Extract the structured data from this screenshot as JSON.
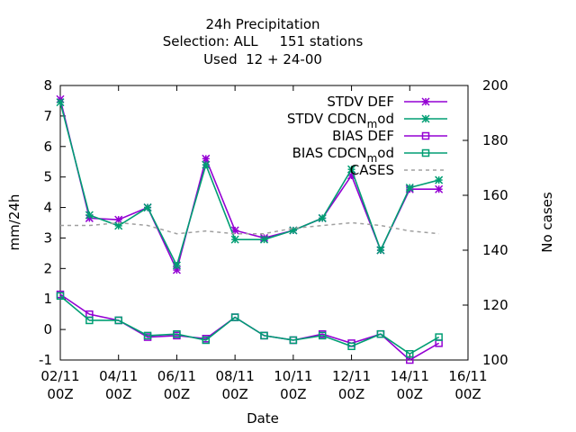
{
  "chart_data": {
    "type": "line",
    "title_lines": [
      "24h Precipitation",
      "Selection: ALL     151 stations",
      "Used  12 + 24-00"
    ],
    "xlabel": "Date",
    "ylabel": "mm/24h",
    "y2label": "No cases",
    "ylim": [
      -1,
      8
    ],
    "y2lim": [
      100,
      200
    ],
    "xlim": [
      0,
      14
    ],
    "yticks": [
      -1,
      0,
      1,
      2,
      3,
      4,
      5,
      6,
      7,
      8
    ],
    "y2ticks": [
      100,
      120,
      140,
      160,
      180,
      200
    ],
    "xticks": [
      {
        "pos": 0,
        "date": "02/11",
        "time": "00Z"
      },
      {
        "pos": 2,
        "date": "04/11",
        "time": "00Z"
      },
      {
        "pos": 4,
        "date": "06/11",
        "time": "00Z"
      },
      {
        "pos": 6,
        "date": "08/11",
        "time": "00Z"
      },
      {
        "pos": 8,
        "date": "10/11",
        "time": "00Z"
      },
      {
        "pos": 10,
        "date": "12/11",
        "time": "00Z"
      },
      {
        "pos": 12,
        "date": "14/11",
        "time": "00Z"
      },
      {
        "pos": 14,
        "date": "16/11",
        "time": "00Z"
      }
    ],
    "legend_position": "top-right",
    "series": [
      {
        "name": "STDV DEF",
        "name_main": "STDV DEF",
        "name_sub": "",
        "name_tail": "",
        "axis": "y1",
        "color": "#9400d3",
        "marker": "star",
        "x": [
          0,
          1,
          2,
          3,
          4,
          5,
          6,
          7,
          8,
          9,
          10,
          11,
          12,
          13
        ],
        "values": [
          7.55,
          3.65,
          3.6,
          4.0,
          1.95,
          5.6,
          3.25,
          3.0,
          3.25,
          3.65,
          5.05,
          2.6,
          4.6,
          4.6
        ]
      },
      {
        "name": "STDV CDCN mod",
        "name_main": "STDV CDCN",
        "name_sub": "m",
        "name_tail": "od",
        "axis": "y1",
        "color": "#009e73",
        "marker": "star",
        "x": [
          0,
          1,
          2,
          3,
          4,
          5,
          6,
          7,
          8,
          9,
          10,
          11,
          12,
          13
        ],
        "values": [
          7.45,
          3.75,
          3.4,
          4.0,
          2.1,
          5.4,
          2.95,
          2.95,
          3.25,
          3.65,
          5.25,
          2.6,
          4.65,
          4.9
        ]
      },
      {
        "name": "BIAS DEF",
        "name_main": "BIAS DEF",
        "name_sub": "",
        "name_tail": "",
        "axis": "y1",
        "color": "#9400d3",
        "marker": "square",
        "x": [
          0,
          1,
          2,
          3,
          4,
          5,
          6,
          7,
          8,
          9,
          10,
          11,
          12,
          13
        ],
        "values": [
          1.15,
          0.5,
          0.3,
          -0.25,
          -0.2,
          -0.3,
          0.4,
          -0.2,
          -0.35,
          -0.15,
          -0.45,
          -0.15,
          -1.0,
          -0.45
        ]
      },
      {
        "name": "BIAS CDCN mod",
        "name_main": "BIAS CDCN",
        "name_sub": "m",
        "name_tail": "od",
        "axis": "y1",
        "color": "#009e73",
        "marker": "square",
        "x": [
          0,
          1,
          2,
          3,
          4,
          5,
          6,
          7,
          8,
          9,
          10,
          11,
          12,
          13
        ],
        "values": [
          1.1,
          0.3,
          0.3,
          -0.2,
          -0.15,
          -0.35,
          0.4,
          -0.2,
          -0.35,
          -0.2,
          -0.55,
          -0.15,
          -0.8,
          -0.25
        ]
      },
      {
        "name": "CASES",
        "name_main": "CASES",
        "name_sub": "",
        "name_tail": "",
        "axis": "y2",
        "color": "#a0a0a0",
        "marker": "dashed",
        "x": [
          0,
          1,
          2,
          3,
          4,
          5,
          6,
          7,
          8,
          9,
          10,
          11,
          12,
          13
        ],
        "values": [
          149,
          149,
          150,
          149,
          146,
          147,
          146,
          146,
          148,
          149,
          150,
          149,
          147,
          146
        ]
      }
    ]
  }
}
